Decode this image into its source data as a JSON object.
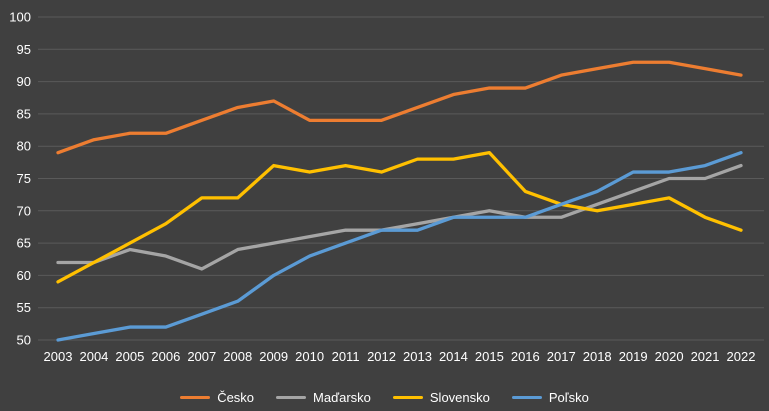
{
  "chart_data": {
    "type": "line",
    "x": [
      2003,
      2004,
      2005,
      2006,
      2007,
      2008,
      2009,
      2010,
      2011,
      2012,
      2013,
      2014,
      2015,
      2016,
      2017,
      2018,
      2019,
      2020,
      2021,
      2022
    ],
    "series": [
      {
        "name": "Česko",
        "color": "#ED7D31",
        "values": [
          79,
          81,
          82,
          82,
          84,
          86,
          87,
          84,
          84,
          84,
          86,
          88,
          89,
          89,
          91,
          92,
          93,
          93,
          92,
          91
        ]
      },
      {
        "name": "Maďarsko",
        "color": "#A5A5A5",
        "values": [
          62,
          62,
          64,
          63,
          61,
          64,
          65,
          66,
          67,
          67,
          68,
          69,
          70,
          69,
          69,
          71,
          73,
          75,
          75,
          77
        ]
      },
      {
        "name": "Slovensko",
        "color": "#FFC000",
        "values": [
          59,
          62,
          65,
          68,
          72,
          72,
          77,
          76,
          77,
          76,
          78,
          78,
          79,
          73,
          71,
          70,
          71,
          72,
          69,
          67
        ]
      },
      {
        "name": "Poľsko",
        "color": "#5B9BD5",
        "values": [
          50,
          51,
          52,
          52,
          54,
          56,
          60,
          63,
          65,
          67,
          67,
          69,
          69,
          69,
          71,
          73,
          76,
          76,
          77,
          79
        ]
      }
    ],
    "title": "",
    "xlabel": "",
    "ylabel": "",
    "ylim": [
      50,
      100
    ],
    "ytick_step": 5,
    "yticks": [
      50,
      55,
      60,
      65,
      70,
      75,
      80,
      85,
      90,
      95,
      100
    ],
    "grid": true,
    "legend_position": "bottom",
    "colors": {
      "background": "#404040",
      "grid": "#5A5A5A",
      "text": "#FFFFFF"
    }
  }
}
